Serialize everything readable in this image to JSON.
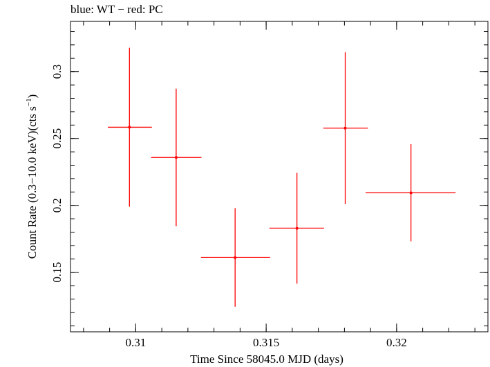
{
  "header": {
    "title": "blue: WT − red: PC"
  },
  "chart_data": {
    "type": "scatter",
    "title": "blue: WT − red: PC",
    "xlabel": "Time Since 58045.0 MJD (days)",
    "ylabel_main": "Count Rate (0.3−10.0 keV)(cts s",
    "ylabel_sup": "−1",
    "ylabel_tail": ")",
    "xlim": [
      0.3075,
      0.3235
    ],
    "ylim": [
      0.1055,
      0.3375
    ],
    "xticks": [
      {
        "value": 0.31,
        "label": "0.31"
      },
      {
        "value": 0.315,
        "label": "0.315"
      },
      {
        "value": 0.32,
        "label": "0.32"
      }
    ],
    "yticks": [
      {
        "value": 0.15,
        "label": "0.15"
      },
      {
        "value": 0.2,
        "label": "0.2"
      },
      {
        "value": 0.25,
        "label": "0.25"
      },
      {
        "value": 0.3,
        "label": "0.3"
      }
    ],
    "x_minor_step": 0.001,
    "y_minor_step": 0.01,
    "grid": false,
    "series": [
      {
        "name": "PC",
        "color": "#ff0000",
        "points": [
          {
            "x": 0.30976,
            "xerr_lo": 0.00083,
            "xerr_hi": 0.00086,
            "y": 0.2584,
            "yerr": 0.0594
          },
          {
            "x": 0.31155,
            "xerr_lo": 0.00096,
            "xerr_hi": 0.00097,
            "y": 0.2358,
            "yerr": 0.0514
          },
          {
            "x": 0.31381,
            "xerr_lo": 0.00131,
            "xerr_hi": 0.00134,
            "y": 0.161,
            "yerr": 0.0368
          },
          {
            "x": 0.31618,
            "xerr_lo": 0.00106,
            "xerr_hi": 0.00104,
            "y": 0.1829,
            "yerr": 0.0414
          },
          {
            "x": 0.31803,
            "xerr_lo": 0.00084,
            "xerr_hi": 0.00087,
            "y": 0.2577,
            "yerr": 0.0568
          },
          {
            "x": 0.32055,
            "xerr_lo": 0.00174,
            "xerr_hi": 0.00171,
            "y": 0.2094,
            "yerr": 0.0363
          }
        ]
      }
    ]
  }
}
